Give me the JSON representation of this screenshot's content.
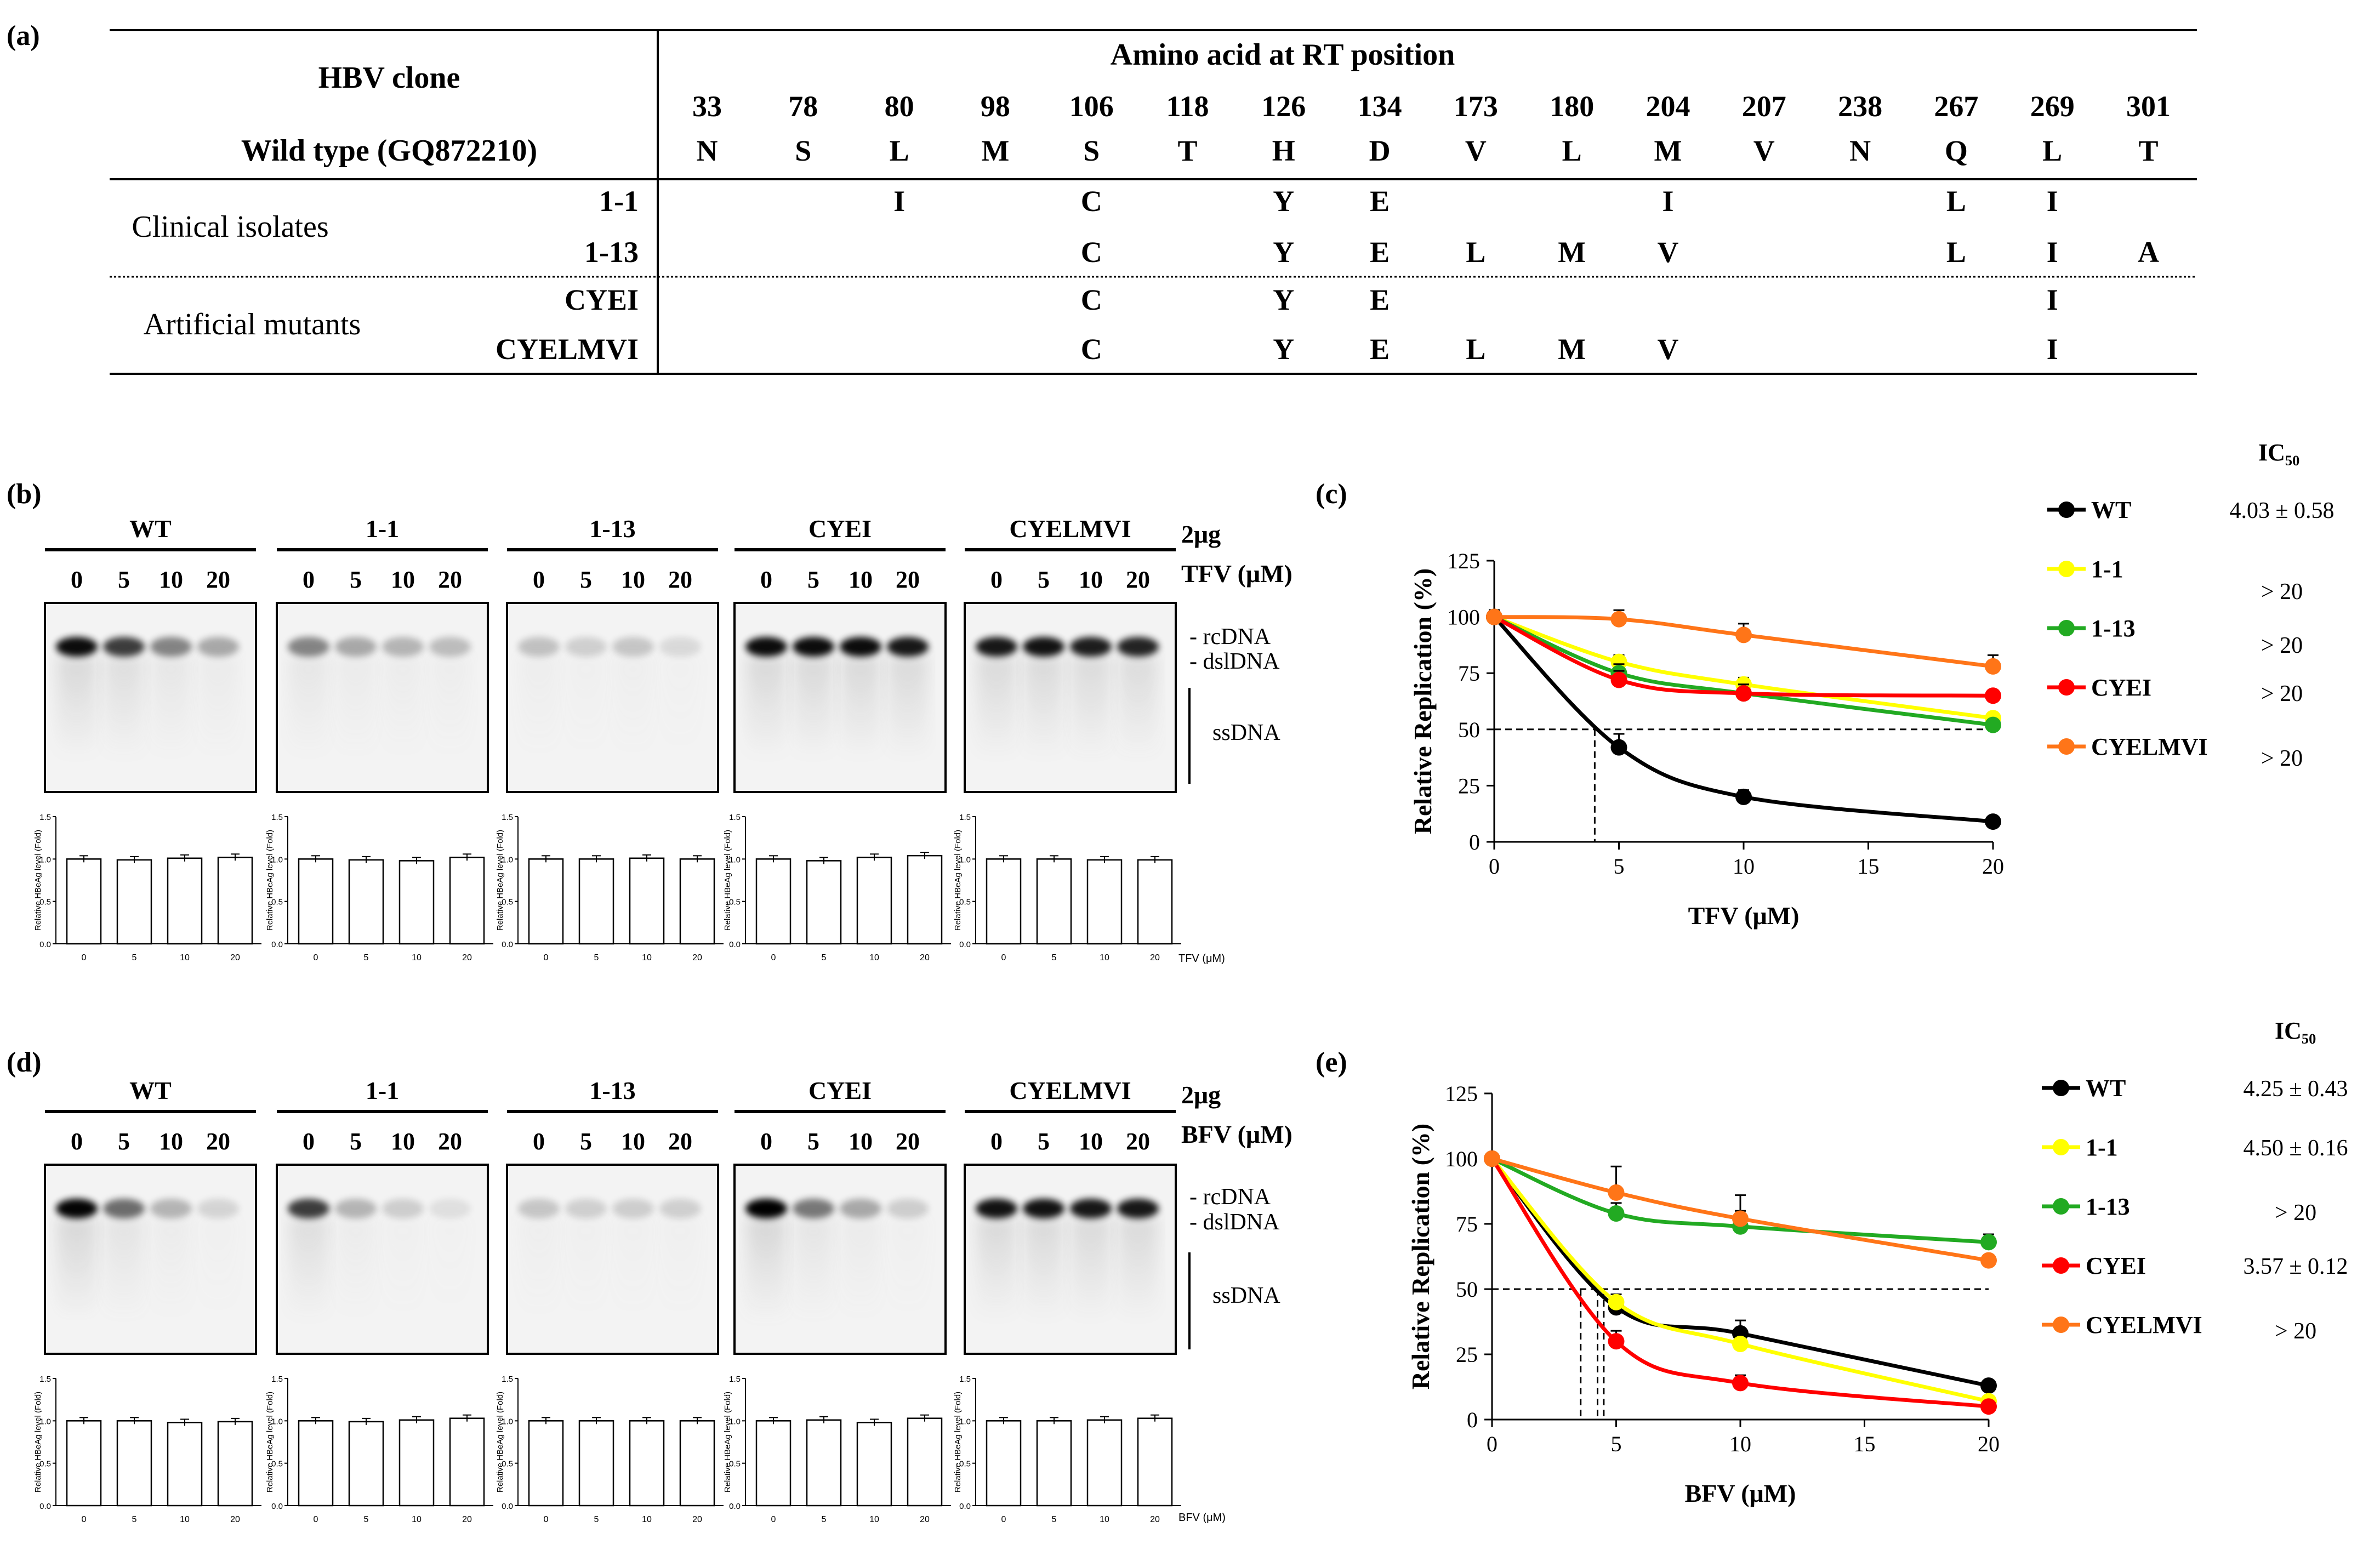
{
  "panel_labels": {
    "a": "(a)",
    "b": "(b)",
    "c": "(c)",
    "d": "(d)",
    "e": "(e)"
  },
  "table": {
    "corner_header": "HBV clone",
    "group_header": "Amino acid at RT position",
    "wildtype_label": "Wild type (GQ872210)",
    "positions": [
      "33",
      "78",
      "80",
      "98",
      "106",
      "118",
      "126",
      "134",
      "173",
      "180",
      "204",
      "207",
      "238",
      "267",
      "269",
      "301"
    ],
    "wildtype": [
      "N",
      "S",
      "L",
      "M",
      "S",
      "T",
      "H",
      "D",
      "V",
      "L",
      "M",
      "V",
      "N",
      "Q",
      "L",
      "T"
    ],
    "groups": [
      {
        "name": "Clinical isolates",
        "rows": [
          {
            "clone": "1-1",
            "cells": [
              "",
              "",
              "I",
              "",
              "C",
              "",
              "Y",
              "E",
              "",
              "",
              "I",
              "",
              "",
              "L",
              "I",
              ""
            ]
          },
          {
            "clone": "1-13",
            "cells": [
              "",
              "",
              "",
              "",
              "C",
              "",
              "Y",
              "E",
              "L",
              "M",
              "V",
              "",
              "",
              "L",
              "I",
              "A"
            ]
          }
        ]
      },
      {
        "name": "Artificial mutants",
        "rows": [
          {
            "clone": "CYEI",
            "cells": [
              "",
              "",
              "",
              "",
              "C",
              "",
              "Y",
              "E",
              "",
              "",
              "",
              "",
              "",
              "",
              "I",
              ""
            ]
          },
          {
            "clone": "CYELMVI",
            "cells": [
              "",
              "",
              "",
              "",
              "C",
              "",
              "Y",
              "E",
              "L",
              "M",
              "V",
              "",
              "",
              "",
              "I",
              ""
            ]
          }
        ]
      }
    ]
  },
  "blots": {
    "amount_label": "2μg",
    "concentrations": [
      "0",
      "5",
      "10",
      "20"
    ],
    "bands": {
      "rcdna": "- rcDNA",
      "dsldna": "- dslDNA",
      "ssdna": "ssDNA"
    },
    "panel_b": {
      "drug_label": "TFV (μM)",
      "groups": [
        "WT",
        "1-1",
        "1-13",
        "CYEI",
        "CYELMVI"
      ]
    },
    "panel_d": {
      "drug_label": "BFV (μM)",
      "groups": [
        "WT",
        "1-1",
        "1-13",
        "CYEI",
        "CYELMVI"
      ]
    },
    "bar_ylabel": "Relative HBeAg level (Fold)",
    "bar_yticks": [
      "0.0",
      "0.5",
      "1.0",
      "1.5"
    ],
    "bar_xlabel_b": "TFV (μM)",
    "bar_xlabel_d": "BFV (μM)",
    "bar_values": {
      "b": [
        [
          1.0,
          0.99,
          1.01,
          1.02
        ],
        [
          1.0,
          0.99,
          0.98,
          1.02
        ],
        [
          1.0,
          1.0,
          1.01,
          1.0
        ],
        [
          1.0,
          0.98,
          1.02,
          1.04
        ],
        [
          1.0,
          1.0,
          0.99,
          0.99
        ]
      ],
      "d": [
        [
          1.0,
          1.0,
          0.98,
          0.99
        ],
        [
          1.0,
          0.99,
          1.01,
          1.03
        ],
        [
          1.0,
          1.0,
          1.0,
          1.0
        ],
        [
          1.0,
          1.01,
          0.98,
          1.03
        ],
        [
          1.0,
          1.0,
          1.01,
          1.03
        ]
      ]
    },
    "band_intensity": {
      "b": [
        [
          0.95,
          0.75,
          0.45,
          0.3
        ],
        [
          0.45,
          0.3,
          0.25,
          0.22
        ],
        [
          0.2,
          0.14,
          0.18,
          0.1
        ],
        [
          0.95,
          0.95,
          0.95,
          0.9
        ],
        [
          0.9,
          0.92,
          0.88,
          0.85
        ]
      ],
      "d": [
        [
          0.98,
          0.55,
          0.25,
          0.12
        ],
        [
          0.75,
          0.25,
          0.15,
          0.08
        ],
        [
          0.18,
          0.14,
          0.15,
          0.14
        ],
        [
          1.0,
          0.5,
          0.3,
          0.15
        ],
        [
          0.92,
          0.92,
          0.9,
          0.9
        ]
      ]
    }
  },
  "chart_data": [
    {
      "type": "line",
      "panel": "(c)",
      "xlabel": "TFV (μM)",
      "ylabel": "Relative Replication (%)",
      "x": [
        0,
        5,
        10,
        20
      ],
      "xlim": [
        0,
        20
      ],
      "ylim": [
        0,
        125
      ],
      "xticks": [
        "0",
        "5",
        "10",
        "15",
        "20"
      ],
      "yticks": [
        "0",
        "25",
        "50",
        "75",
        "100",
        "125"
      ],
      "ic50_header": "IC₅₀",
      "series": [
        {
          "name": "WT",
          "color": "#000000",
          "values": [
            100,
            42,
            20,
            9
          ],
          "err": [
            3,
            6,
            3,
            2
          ],
          "ic50": "4.03 ± 0.58",
          "ic50_x": 4.03
        },
        {
          "name": "1-1",
          "color": "#ffff00",
          "values": [
            100,
            80,
            70,
            55
          ],
          "err": [
            3,
            3,
            3,
            2
          ],
          "ic50": "> 20"
        },
        {
          "name": "1-13",
          "color": "#22aa22",
          "values": [
            100,
            75,
            66,
            52
          ],
          "err": [
            3,
            4,
            4,
            2
          ],
          "ic50": "> 20"
        },
        {
          "name": "CYEI",
          "color": "#ff0000",
          "values": [
            100,
            72,
            66,
            65
          ],
          "err": [
            3,
            4,
            4,
            2
          ],
          "ic50": "> 20"
        },
        {
          "name": "CYELMVI",
          "color": "#ff7518",
          "values": [
            100,
            99,
            92,
            78
          ],
          "err": [
            3,
            4,
            5,
            5
          ],
          "ic50": "> 20"
        }
      ],
      "reference_line_y": 50
    },
    {
      "type": "line",
      "panel": "(e)",
      "xlabel": "BFV (μM)",
      "ylabel": "Relative Replication (%)",
      "x": [
        0,
        5,
        10,
        20
      ],
      "xlim": [
        0,
        20
      ],
      "ylim": [
        0,
        125
      ],
      "xticks": [
        "0",
        "5",
        "10",
        "15",
        "20"
      ],
      "yticks": [
        "0",
        "25",
        "50",
        "75",
        "100",
        "125"
      ],
      "ic50_header": "IC₅₀",
      "series": [
        {
          "name": "WT",
          "color": "#000000",
          "values": [
            100,
            43,
            33,
            13
          ],
          "err": [
            2,
            4,
            5,
            2
          ],
          "ic50": "4.25 ± 0.43",
          "ic50_x": 4.25
        },
        {
          "name": "1-1",
          "color": "#ffff00",
          "values": [
            100,
            45,
            29,
            7
          ],
          "err": [
            2,
            3,
            3,
            2
          ],
          "ic50": "4.50 ± 0.16",
          "ic50_x": 4.5
        },
        {
          "name": "1-13",
          "color": "#22aa22",
          "values": [
            100,
            79,
            74,
            68
          ],
          "err": [
            2,
            4,
            6,
            3
          ],
          "ic50": "> 20"
        },
        {
          "name": "CYEI",
          "color": "#ff0000",
          "values": [
            100,
            30,
            14,
            5
          ],
          "err": [
            2,
            4,
            3,
            1
          ],
          "ic50": "3.57 ± 0.12",
          "ic50_x": 3.57
        },
        {
          "name": "CYELMVI",
          "color": "#ff7518",
          "values": [
            100,
            87,
            77,
            61
          ],
          "err": [
            2,
            10,
            9,
            2
          ],
          "ic50": "> 20"
        }
      ],
      "reference_line_y": 50
    }
  ]
}
